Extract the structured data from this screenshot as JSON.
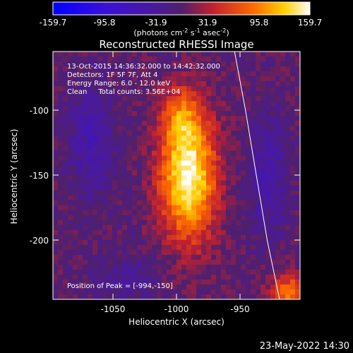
{
  "colorbar": {
    "ticks": [
      "-159.7",
      "-95.8",
      "-31.9",
      "31.9",
      "95.8",
      "159.7"
    ],
    "unit_prefix": "(photons cm",
    "unit_exp1": "-2",
    "unit_mid": " s",
    "unit_exp2": "-1",
    "unit_mid2": " asec",
    "unit_exp3": "-2",
    "unit_suffix": ")"
  },
  "chart_data": {
    "type": "heatmap",
    "title": "Reconstructed RHESSI Image",
    "xlabel": "Heliocentric X (arcsec)",
    "ylabel": "Heliocentric Y (arcsec)",
    "xlim": [
      -1093,
      -912
    ],
    "ylim": [
      -245,
      -55
    ],
    "xticks": [
      "-1050",
      "-1000",
      "-950"
    ],
    "yticks": [
      "-100",
      "-150",
      "-200"
    ],
    "clim": [
      -159.7,
      159.7
    ],
    "colormap": "blue-purple-red-yellow-white",
    "peak": {
      "x": -994,
      "y": -150,
      "value": 159.7
    },
    "limb_curve": [
      [
        -960,
        -55
      ],
      [
        -952,
        -100
      ],
      [
        -944,
        -150
      ],
      [
        -936,
        -200
      ],
      [
        -927,
        -245
      ]
    ],
    "annotations": {
      "time": "13-Oct-2015 14:36:32.000 to 14:42:32.000",
      "detectors": "Detectors: 1F 5F 7F, Att 4",
      "energy": "Energy Range: 6.0 - 12.0 keV",
      "clean": "Clean     Total counts: 3.56E+04",
      "peak_label": "Position of Peak = [-994,-150]"
    }
  },
  "footer": {
    "date": "23-May-2022 14:30"
  }
}
